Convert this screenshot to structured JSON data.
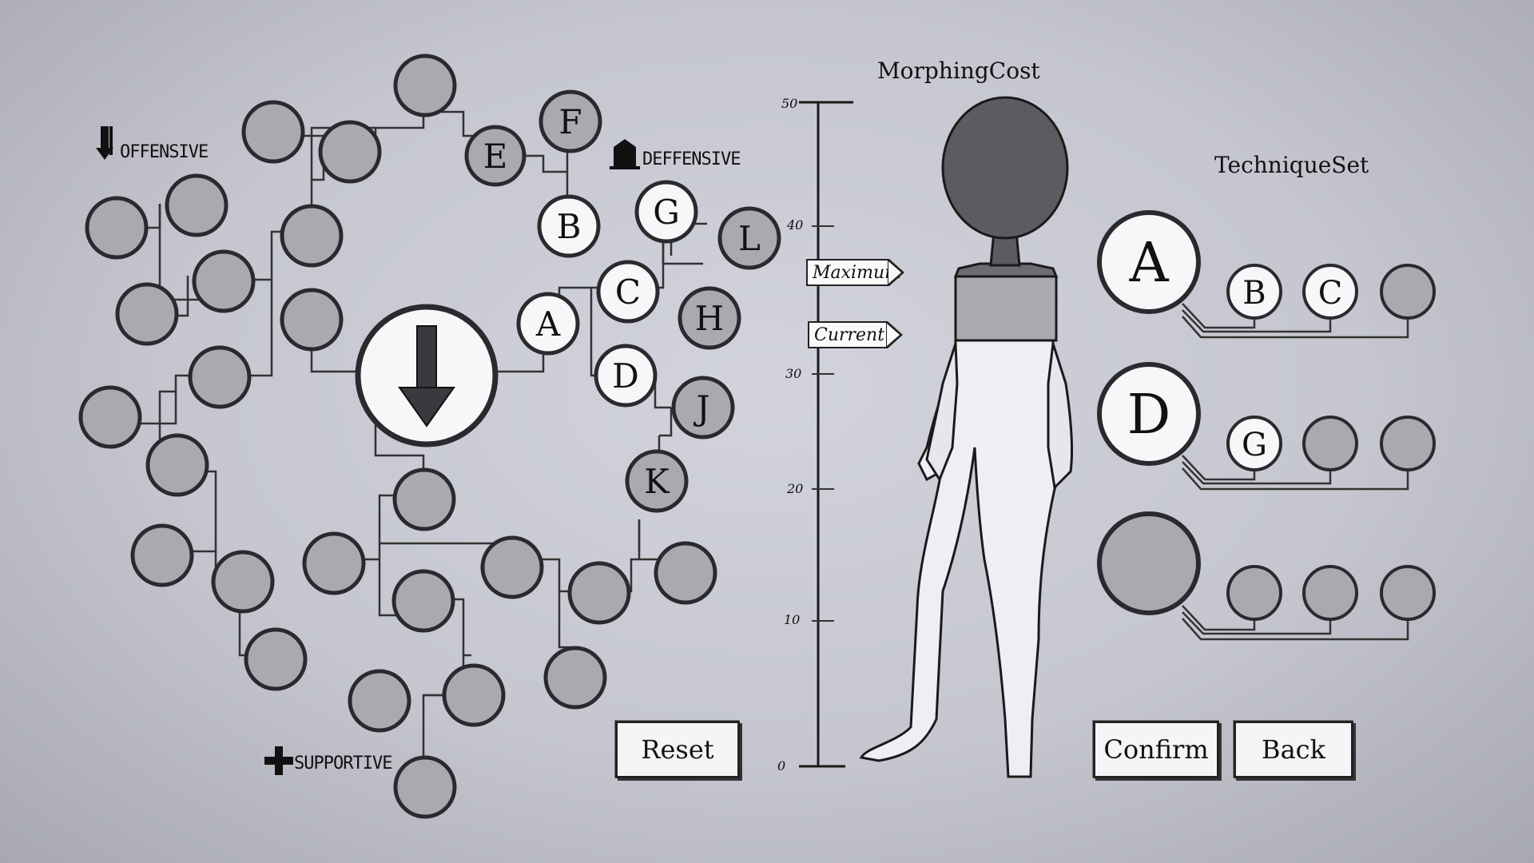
{
  "categories": {
    "offensive": "OFFENSIVE",
    "defensive": "DEFFENSIVE",
    "supportive": "SUPPORTIVE"
  },
  "tree": {
    "center_icon": "arrow-down-icon",
    "letters": {
      "a": "A",
      "b": "B",
      "c": "C",
      "d": "D",
      "e": "E",
      "f": "F",
      "g": "G",
      "h": "H",
      "j": "J",
      "k": "K",
      "l": "L"
    }
  },
  "morphing": {
    "title": "MorphingCost",
    "scale_max": 50,
    "ticks": [
      "50",
      "40",
      "30",
      "20",
      "10",
      "0"
    ],
    "maximum_label": "Maximum",
    "current_label": "Current",
    "maximum_value": 37,
    "current_value": 33
  },
  "technique_set": {
    "title": "TechniqueSet",
    "rows": [
      {
        "main": "A",
        "subs": [
          "B",
          "C",
          ""
        ]
      },
      {
        "main": "D",
        "subs": [
          "G",
          "",
          ""
        ]
      },
      {
        "main": "",
        "subs": [
          "",
          "",
          ""
        ]
      }
    ]
  },
  "buttons": {
    "reset": "Reset",
    "confirm": "Confirm",
    "back": "Back"
  },
  "colors": {
    "node_filled": "#a9aab0",
    "node_selected": "#f7f7f9",
    "outline": "#2a2a2e"
  }
}
